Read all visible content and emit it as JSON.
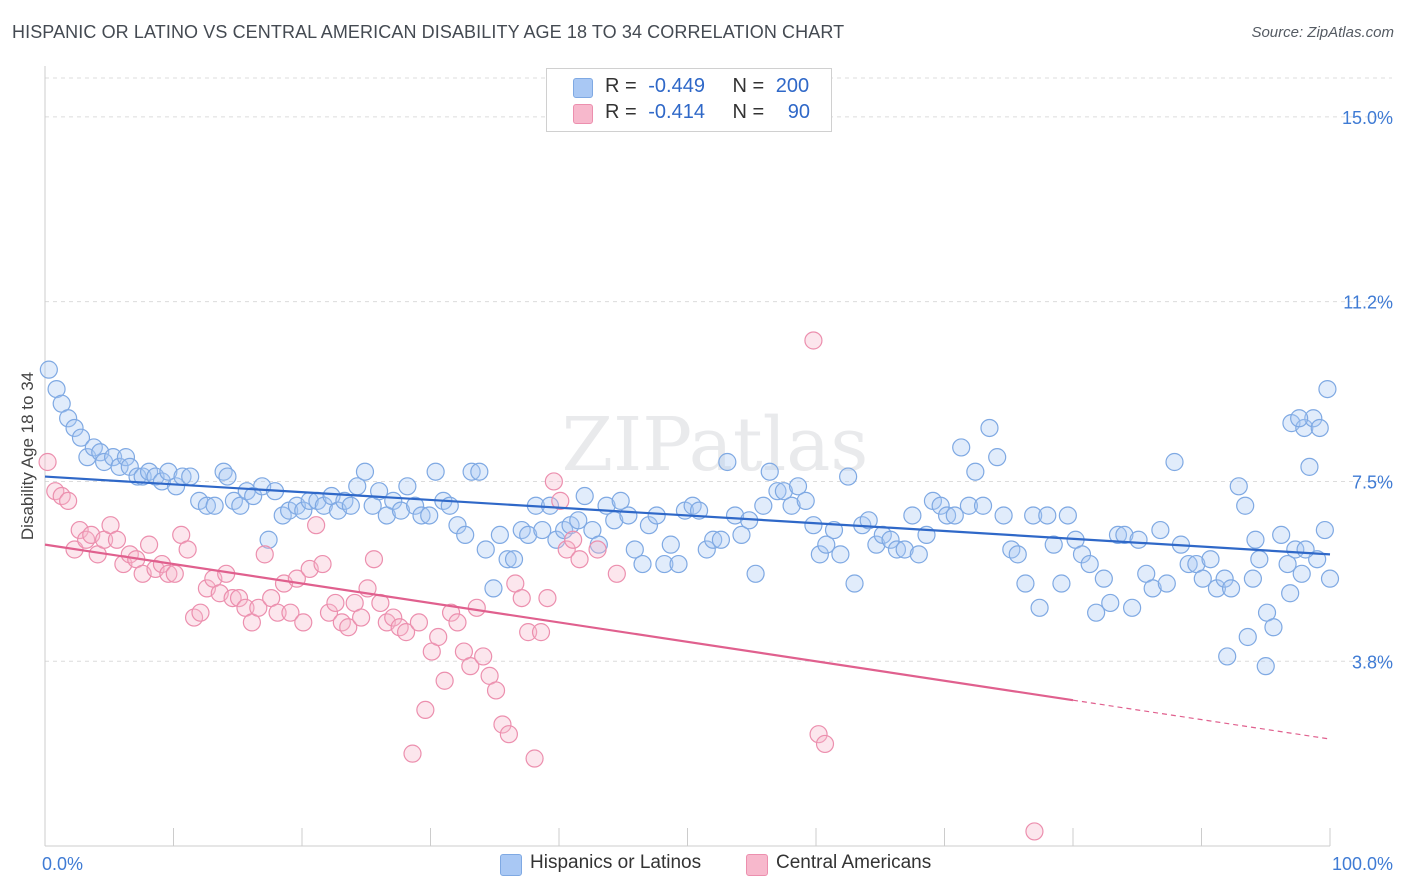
{
  "title": "HISPANIC OR LATINO VS CENTRAL AMERICAN DISABILITY AGE 18 TO 34 CORRELATION CHART",
  "source": "Source: ZipAtlas.com",
  "watermark": "ZIPatlas",
  "legend": {
    "rows": [
      {
        "r_label": "R =",
        "r_value": "-0.449",
        "n_label": "N =",
        "n_value": "200",
        "color": "#a9c8f4",
        "border": "#7fa9e3"
      },
      {
        "r_label": "R =",
        "r_value": "-0.414",
        "n_label": "N =",
        "n_value": "90",
        "color": "#f7b8cc",
        "border": "#ec8fae"
      }
    ]
  },
  "bottom_legend": [
    "Hispanics or Latinos",
    "Central Americans"
  ],
  "chart_data": {
    "type": "scatter",
    "title": "HISPANIC OR LATINO VS CENTRAL AMERICAN DISABILITY AGE 18 TO 34 CORRELATION CHART",
    "xlabel": "",
    "ylabel": "Disability Age 18 to 34",
    "xlim": [
      0,
      100
    ],
    "ylim": [
      0,
      15.8
    ],
    "x_tick_labels": [
      "0.0%",
      "100.0%"
    ],
    "y_ticks": [
      3.8,
      7.5,
      11.2,
      15.0
    ],
    "y_tick_labels": [
      "3.8%",
      "7.5%",
      "11.2%",
      "15.0%"
    ],
    "grid": true,
    "series": [
      {
        "name": "Hispanics or Latinos",
        "color": "#7fa9e3",
        "fill": "rgba(169,200,244,0.35)",
        "line_color": "#2f68c8",
        "trend": {
          "x": [
            0,
            100
          ],
          "y": [
            7.6,
            6.0
          ]
        },
        "points": [
          [
            0.3,
            9.8
          ],
          [
            0.9,
            9.4
          ],
          [
            1.3,
            9.1
          ],
          [
            1.8,
            8.8
          ],
          [
            2.3,
            8.6
          ],
          [
            2.8,
            8.4
          ],
          [
            3.3,
            8.0
          ],
          [
            3.8,
            8.2
          ],
          [
            4.3,
            8.1
          ],
          [
            4.6,
            7.9
          ],
          [
            5.3,
            8.0
          ],
          [
            5.8,
            7.8
          ],
          [
            6.3,
            8.0
          ],
          [
            6.6,
            7.8
          ],
          [
            7.2,
            7.6
          ],
          [
            7.6,
            7.6
          ],
          [
            8.1,
            7.7
          ],
          [
            8.6,
            7.6
          ],
          [
            9.1,
            7.5
          ],
          [
            9.6,
            7.7
          ],
          [
            10.2,
            7.4
          ],
          [
            10.7,
            7.6
          ],
          [
            11.3,
            7.6
          ],
          [
            12.0,
            7.1
          ],
          [
            12.6,
            7.0
          ],
          [
            13.2,
            7.0
          ],
          [
            13.9,
            7.7
          ],
          [
            14.2,
            7.6
          ],
          [
            14.7,
            7.1
          ],
          [
            15.2,
            7.0
          ],
          [
            15.7,
            7.3
          ],
          [
            16.2,
            7.2
          ],
          [
            16.9,
            7.4
          ],
          [
            17.4,
            6.3
          ],
          [
            17.9,
            7.3
          ],
          [
            18.5,
            6.8
          ],
          [
            19.0,
            6.9
          ],
          [
            19.6,
            7.0
          ],
          [
            20.1,
            6.9
          ],
          [
            20.6,
            7.1
          ],
          [
            21.2,
            7.1
          ],
          [
            21.7,
            7.0
          ],
          [
            22.3,
            7.2
          ],
          [
            22.8,
            6.9
          ],
          [
            23.3,
            7.1
          ],
          [
            23.8,
            7.0
          ],
          [
            24.3,
            7.4
          ],
          [
            24.9,
            7.7
          ],
          [
            25.5,
            7.0
          ],
          [
            26.0,
            7.3
          ],
          [
            26.6,
            6.8
          ],
          [
            27.1,
            7.1
          ],
          [
            27.7,
            6.9
          ],
          [
            28.2,
            7.4
          ],
          [
            28.8,
            7.0
          ],
          [
            29.3,
            6.8
          ],
          [
            29.9,
            6.8
          ],
          [
            30.4,
            7.7
          ],
          [
            31.0,
            7.1
          ],
          [
            31.5,
            7.0
          ],
          [
            32.1,
            6.6
          ],
          [
            32.7,
            6.4
          ],
          [
            33.2,
            7.7
          ],
          [
            33.8,
            7.7
          ],
          [
            34.3,
            6.1
          ],
          [
            34.9,
            5.3
          ],
          [
            35.4,
            6.4
          ],
          [
            36.0,
            5.9
          ],
          [
            36.5,
            5.9
          ],
          [
            37.1,
            6.5
          ],
          [
            37.6,
            6.4
          ],
          [
            38.2,
            7.0
          ],
          [
            38.7,
            6.5
          ],
          [
            39.3,
            7.0
          ],
          [
            39.8,
            6.3
          ],
          [
            40.4,
            6.5
          ],
          [
            40.9,
            6.6
          ],
          [
            41.5,
            6.7
          ],
          [
            42.0,
            7.2
          ],
          [
            42.6,
            6.5
          ],
          [
            43.1,
            6.2
          ],
          [
            43.7,
            7.0
          ],
          [
            44.3,
            6.7
          ],
          [
            44.8,
            7.1
          ],
          [
            45.4,
            6.8
          ],
          [
            45.9,
            6.1
          ],
          [
            46.5,
            5.8
          ],
          [
            47.0,
            6.6
          ],
          [
            47.6,
            6.8
          ],
          [
            48.2,
            5.8
          ],
          [
            48.7,
            6.2
          ],
          [
            49.3,
            5.8
          ],
          [
            49.8,
            6.9
          ],
          [
            50.4,
            7.0
          ],
          [
            50.9,
            6.9
          ],
          [
            51.5,
            6.1
          ],
          [
            52.0,
            6.3
          ],
          [
            52.6,
            6.3
          ],
          [
            53.1,
            7.9
          ],
          [
            53.7,
            6.8
          ],
          [
            54.2,
            6.4
          ],
          [
            54.8,
            6.7
          ],
          [
            55.3,
            5.6
          ],
          [
            55.9,
            7.0
          ],
          [
            56.4,
            7.7
          ],
          [
            57.0,
            7.3
          ],
          [
            57.5,
            7.3
          ],
          [
            58.1,
            7.0
          ],
          [
            58.6,
            7.4
          ],
          [
            59.2,
            7.1
          ],
          [
            59.8,
            6.6
          ],
          [
            60.3,
            6.0
          ],
          [
            60.8,
            6.2
          ],
          [
            61.4,
            6.5
          ],
          [
            61.9,
            6.0
          ],
          [
            62.5,
            7.6
          ],
          [
            63.0,
            5.4
          ],
          [
            63.6,
            6.6
          ],
          [
            64.1,
            6.7
          ],
          [
            64.7,
            6.2
          ],
          [
            65.2,
            6.4
          ],
          [
            65.8,
            6.3
          ],
          [
            66.3,
            6.1
          ],
          [
            66.9,
            6.1
          ],
          [
            67.5,
            6.8
          ],
          [
            68.0,
            6.0
          ],
          [
            68.6,
            6.4
          ],
          [
            69.1,
            7.1
          ],
          [
            69.7,
            7.0
          ],
          [
            70.2,
            6.8
          ],
          [
            70.8,
            6.8
          ],
          [
            71.3,
            8.2
          ],
          [
            71.9,
            7.0
          ],
          [
            72.4,
            7.7
          ],
          [
            73.0,
            7.0
          ],
          [
            73.5,
            8.6
          ],
          [
            74.1,
            8.0
          ],
          [
            74.6,
            6.8
          ],
          [
            75.2,
            6.1
          ],
          [
            75.7,
            6.0
          ],
          [
            76.3,
            5.4
          ],
          [
            76.9,
            6.8
          ],
          [
            77.4,
            4.9
          ],
          [
            78.0,
            6.8
          ],
          [
            78.5,
            6.2
          ],
          [
            79.1,
            5.4
          ],
          [
            79.6,
            6.8
          ],
          [
            80.2,
            6.3
          ],
          [
            80.7,
            6.0
          ],
          [
            81.3,
            5.8
          ],
          [
            81.8,
            4.8
          ],
          [
            82.4,
            5.5
          ],
          [
            82.9,
            5.0
          ],
          [
            83.5,
            6.4
          ],
          [
            84.0,
            6.4
          ],
          [
            84.6,
            4.9
          ],
          [
            85.1,
            6.3
          ],
          [
            85.7,
            5.6
          ],
          [
            86.2,
            5.3
          ],
          [
            86.8,
            6.5
          ],
          [
            87.3,
            5.4
          ],
          [
            87.9,
            7.9
          ],
          [
            88.4,
            6.2
          ],
          [
            89.0,
            5.8
          ],
          [
            89.6,
            5.8
          ],
          [
            90.1,
            5.5
          ],
          [
            90.7,
            5.9
          ],
          [
            91.2,
            5.3
          ],
          [
            91.8,
            5.5
          ],
          [
            92.3,
            5.3
          ],
          [
            92.9,
            7.4
          ],
          [
            93.4,
            7.0
          ],
          [
            94.0,
            5.5
          ],
          [
            94.5,
            5.9
          ],
          [
            95.1,
            4.8
          ],
          [
            95.6,
            4.5
          ],
          [
            96.2,
            6.4
          ],
          [
            96.7,
            5.8
          ],
          [
            97.3,
            6.1
          ],
          [
            97.8,
            5.6
          ],
          [
            98.4,
            7.8
          ],
          [
            99.0,
            5.9
          ],
          [
            99.6,
            6.5
          ],
          [
            100.0,
            5.5
          ],
          [
            98.1,
            6.1
          ],
          [
            96.9,
            5.2
          ],
          [
            92.0,
            3.9
          ],
          [
            93.6,
            4.3
          ],
          [
            95.0,
            3.7
          ],
          [
            97.0,
            8.7
          ],
          [
            98.0,
            8.6
          ],
          [
            98.7,
            8.8
          ],
          [
            99.2,
            8.6
          ],
          [
            99.8,
            9.4
          ],
          [
            97.6,
            8.8
          ],
          [
            94.2,
            6.3
          ]
        ]
      },
      {
        "name": "Central Americans",
        "color": "#ec8fae",
        "fill": "rgba(247,184,204,0.35)",
        "line_color": "#e0608e",
        "trend": {
          "x": [
            0,
            80
          ],
          "y": [
            6.2,
            3.0
          ]
        },
        "trend_dash": {
          "x": [
            80,
            100
          ],
          "y": [
            3.0,
            2.2
          ]
        },
        "points": [
          [
            0.2,
            7.9
          ],
          [
            0.8,
            7.3
          ],
          [
            1.3,
            7.2
          ],
          [
            1.8,
            7.1
          ],
          [
            2.3,
            6.1
          ],
          [
            2.7,
            6.5
          ],
          [
            3.2,
            6.3
          ],
          [
            3.6,
            6.4
          ],
          [
            4.1,
            6.0
          ],
          [
            4.6,
            6.3
          ],
          [
            5.1,
            6.6
          ],
          [
            5.6,
            6.3
          ],
          [
            6.1,
            5.8
          ],
          [
            6.6,
            6.0
          ],
          [
            7.1,
            5.9
          ],
          [
            7.6,
            5.6
          ],
          [
            8.1,
            6.2
          ],
          [
            8.6,
            5.7
          ],
          [
            9.1,
            5.8
          ],
          [
            9.6,
            5.6
          ],
          [
            10.1,
            5.6
          ],
          [
            10.6,
            6.4
          ],
          [
            11.1,
            6.1
          ],
          [
            11.6,
            4.7
          ],
          [
            12.1,
            4.8
          ],
          [
            12.6,
            5.3
          ],
          [
            13.1,
            5.5
          ],
          [
            13.6,
            5.2
          ],
          [
            14.1,
            5.6
          ],
          [
            14.6,
            5.1
          ],
          [
            15.1,
            5.1
          ],
          [
            15.6,
            4.9
          ],
          [
            16.1,
            4.6
          ],
          [
            16.6,
            4.9
          ],
          [
            17.1,
            6.0
          ],
          [
            17.6,
            5.1
          ],
          [
            18.1,
            4.8
          ],
          [
            18.6,
            5.4
          ],
          [
            19.1,
            4.8
          ],
          [
            19.6,
            5.5
          ],
          [
            20.1,
            4.6
          ],
          [
            20.6,
            5.7
          ],
          [
            21.1,
            6.6
          ],
          [
            21.6,
            5.8
          ],
          [
            22.1,
            4.8
          ],
          [
            22.6,
            5.0
          ],
          [
            23.1,
            4.6
          ],
          [
            23.6,
            4.5
          ],
          [
            24.1,
            5.0
          ],
          [
            24.6,
            4.7
          ],
          [
            25.1,
            5.3
          ],
          [
            25.6,
            5.9
          ],
          [
            26.1,
            5.0
          ],
          [
            26.6,
            4.6
          ],
          [
            27.1,
            4.7
          ],
          [
            27.6,
            4.5
          ],
          [
            28.1,
            4.4
          ],
          [
            28.6,
            1.9
          ],
          [
            29.1,
            4.6
          ],
          [
            29.6,
            2.8
          ],
          [
            30.1,
            4.0
          ],
          [
            30.6,
            4.3
          ],
          [
            31.1,
            3.4
          ],
          [
            31.6,
            4.8
          ],
          [
            32.1,
            4.6
          ],
          [
            32.6,
            4.0
          ],
          [
            33.1,
            3.7
          ],
          [
            33.6,
            4.9
          ],
          [
            34.1,
            3.9
          ],
          [
            34.6,
            3.5
          ],
          [
            35.1,
            3.2
          ],
          [
            35.6,
            2.5
          ],
          [
            36.1,
            2.3
          ],
          [
            36.6,
            5.4
          ],
          [
            37.1,
            5.1
          ],
          [
            37.6,
            4.4
          ],
          [
            38.1,
            1.8
          ],
          [
            38.6,
            4.4
          ],
          [
            39.1,
            5.1
          ],
          [
            39.6,
            7.5
          ],
          [
            40.1,
            7.1
          ],
          [
            40.6,
            6.1
          ],
          [
            41.1,
            6.3
          ],
          [
            41.6,
            5.9
          ],
          [
            43.0,
            6.1
          ],
          [
            44.5,
            5.6
          ],
          [
            59.8,
            10.4
          ],
          [
            60.2,
            2.3
          ],
          [
            60.7,
            2.1
          ],
          [
            77.0,
            0.3
          ]
        ]
      }
    ]
  }
}
